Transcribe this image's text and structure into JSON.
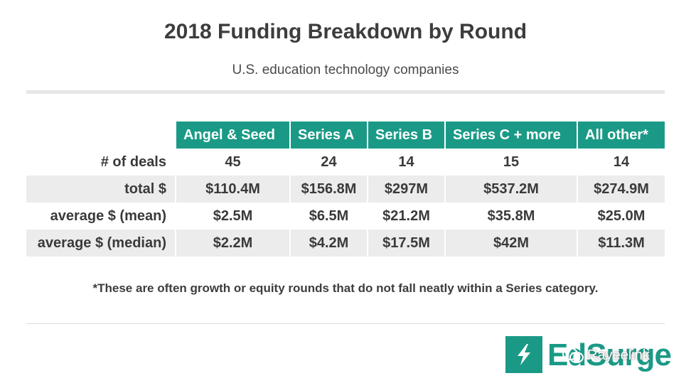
{
  "title": "2018 Funding Breakdown by Round",
  "subtitle": "U.S. education technology companies",
  "colors": {
    "accent": "#1a9a86",
    "row_shade": "#ececec",
    "text": "#3a3a3a"
  },
  "chart_data": {
    "type": "table",
    "title": "2018 Funding Breakdown by Round",
    "subtitle": "U.S. education technology companies",
    "columns": [
      "Angel & Seed",
      "Series A",
      "Series B",
      "Series C + more",
      "All other*"
    ],
    "rows": [
      {
        "label": "# of deals",
        "values": [
          "45",
          "24",
          "14",
          "15",
          "14"
        ]
      },
      {
        "label": "total $",
        "values": [
          "$110.4M",
          "$156.8M",
          "$297M",
          "$537.2M",
          "$274.9M"
        ]
      },
      {
        "label": "average $ (mean)",
        "values": [
          "$2.5M",
          "$6.5M",
          "$21.2M",
          "$35.8M",
          "$25.0M"
        ]
      },
      {
        "label": "average $ (median)",
        "values": [
          "$2.2M",
          "$4.2M",
          "$17.5M",
          "$42M",
          "$11.3M"
        ]
      }
    ],
    "footnote": "*These are often growth or equity rounds that do not fall neatly within a Series category."
  },
  "logo": {
    "text": "EdSurge",
    "icon": "lightning-bolt-icon"
  },
  "watermark": {
    "text": "Rayeelink",
    "icon": "wechat-icon"
  }
}
